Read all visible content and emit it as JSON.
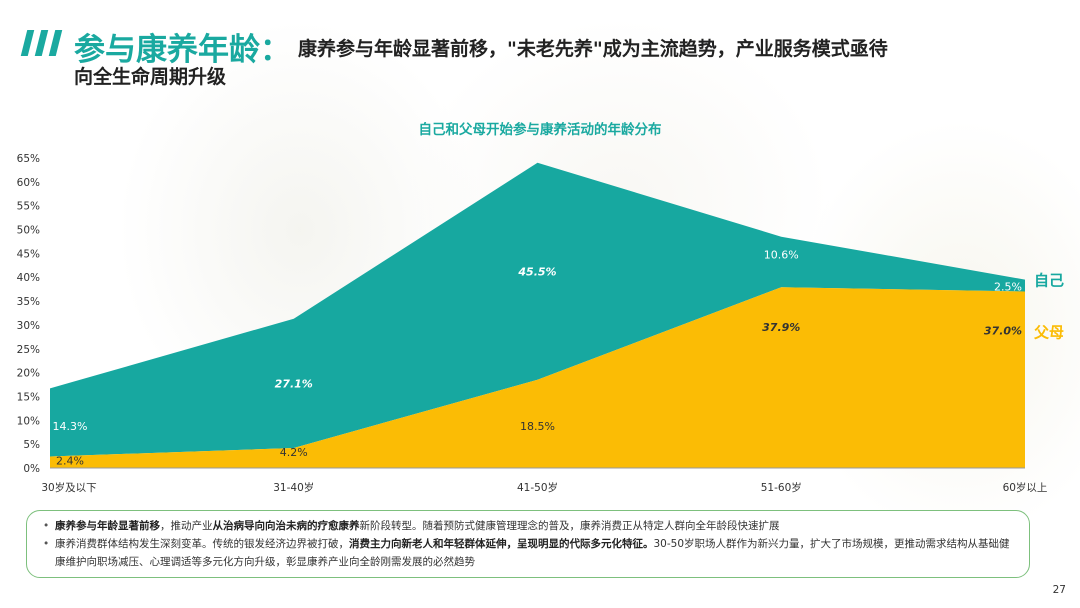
{
  "header": {
    "title": "参与康养年龄：",
    "subtitle_line1": "康养参与年龄显著前移，\"未老先养\"成为主流趋势，产业服务模式亟待",
    "subtitle_line2": "向全生命周期升级"
  },
  "chart_data": {
    "type": "area",
    "title": "自己和父母开始参与康养活动的年龄分布",
    "categories": [
      "30岁及以下",
      "31-40岁",
      "41-50岁",
      "51-60岁",
      "60岁以上"
    ],
    "series": [
      {
        "name": "父母",
        "color": "#fbbc05",
        "values": [
          2.4,
          4.2,
          18.5,
          37.9,
          37.0
        ],
        "labels": [
          "2.4%",
          "4.2%",
          "18.5%",
          "37.9%",
          "37.0%"
        ]
      },
      {
        "name": "自己",
        "color": "#17a8a0",
        "values": [
          14.3,
          27.1,
          45.5,
          10.6,
          2.5
        ],
        "labels": [
          "14.3%",
          "27.1%",
          "45.5%",
          "10.6%",
          "2.5%"
        ]
      }
    ],
    "stacked": true,
    "ylim": [
      0,
      65
    ],
    "yticks": [
      "0%",
      "5%",
      "10%",
      "15%",
      "20%",
      "25%",
      "30%",
      "35%",
      "40%",
      "45%",
      "50%",
      "55%",
      "60%",
      "65%"
    ],
    "legend": [
      "自己",
      "父母"
    ],
    "legend_position": "right"
  },
  "notes": [
    {
      "parts": [
        {
          "text": "康养参与年龄显著前移",
          "bold": true
        },
        {
          "text": "，推动产业",
          "bold": false
        },
        {
          "text": "从治病导向向治未病的疗愈康养",
          "bold": true
        },
        {
          "text": "新阶段转型。随着预防式健康管理理念的普及，康养消费正从特定人群向全年龄段快速扩展",
          "bold": false
        }
      ]
    },
    {
      "parts": [
        {
          "text": "康养消费群体结构发生深刻变革。传统的银发经济边界被打破，",
          "bold": false
        },
        {
          "text": "消费主力向新老人和年轻群体延伸，呈现明显的代际多元化特征。",
          "bold": true
        },
        {
          "text": "30-50岁职场人群作为新兴力量，扩大了市场规模，更推动需求结构从基础健康维护向职场减压、心理调适等多元化方向升级，彰显康养产业向全龄刚需发展的必然趋势",
          "bold": false
        }
      ]
    }
  ],
  "page_number": "27"
}
